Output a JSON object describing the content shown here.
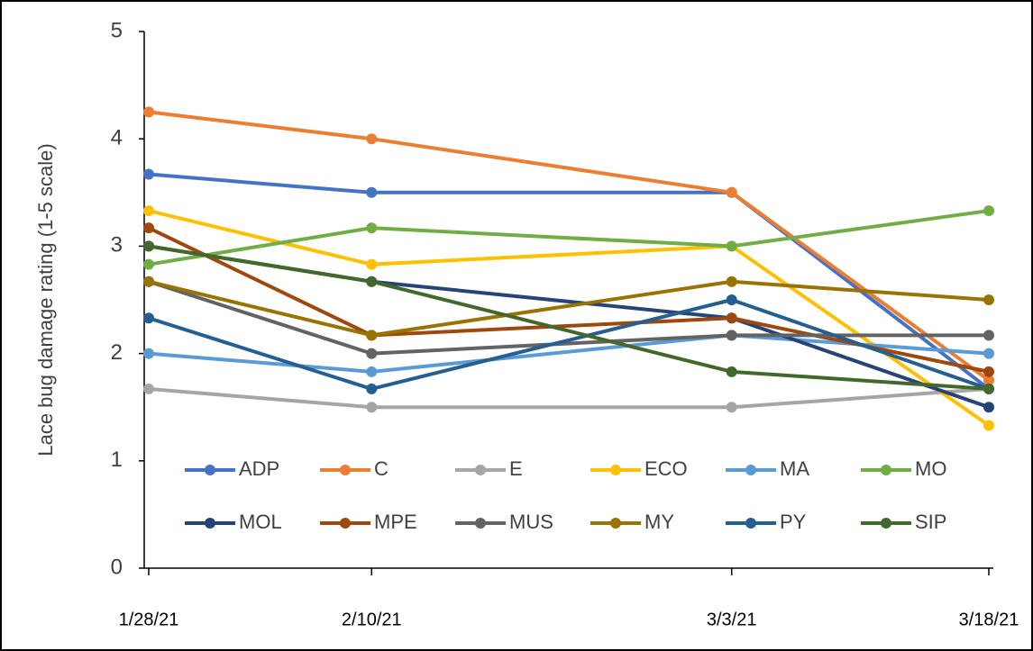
{
  "chart_data": {
    "type": "line",
    "y_label": "Lace bug damage rating (1-5 scale)",
    "x": [
      "1/28/21",
      "2/10/21",
      "3/3/21",
      "3/18/21"
    ],
    "xticks": [
      "1/28/21",
      "2/10/21",
      "3/3/21",
      "3/18/21"
    ],
    "ylim": [
      0,
      5
    ],
    "yticks": [
      0,
      1,
      2,
      3,
      4,
      5
    ],
    "series": [
      {
        "name": "ADP",
        "color": "#4472c4",
        "values": [
          3.67,
          3.5,
          3.5,
          1.67
        ]
      },
      {
        "name": "C",
        "color": "#ed7d31",
        "values": [
          4.25,
          4.0,
          3.5,
          1.75
        ]
      },
      {
        "name": "E",
        "color": "#a5a5a5",
        "values": [
          1.67,
          1.5,
          1.5,
          1.67
        ]
      },
      {
        "name": "ECO",
        "color": "#ffc000",
        "values": [
          3.33,
          2.83,
          3.0,
          1.33
        ]
      },
      {
        "name": "MA",
        "color": "#5b9bd5",
        "values": [
          2.0,
          1.83,
          2.17,
          2.0
        ]
      },
      {
        "name": "MO",
        "color": "#70ad47",
        "values": [
          2.83,
          3.17,
          3.0,
          3.33
        ]
      },
      {
        "name": "MOL",
        "color": "#264478",
        "values": [
          3.0,
          2.67,
          2.33,
          1.5
        ]
      },
      {
        "name": "MPE",
        "color": "#9e480e",
        "values": [
          3.17,
          2.17,
          2.33,
          1.83
        ]
      },
      {
        "name": "MUS",
        "color": "#636363",
        "values": [
          2.67,
          2.0,
          2.17,
          2.17
        ]
      },
      {
        "name": "MY",
        "color": "#997300",
        "values": [
          2.67,
          2.17,
          2.67,
          2.5
        ]
      },
      {
        "name": "PY",
        "color": "#255e91",
        "values": [
          2.33,
          1.67,
          2.5,
          1.67
        ]
      },
      {
        "name": "SIP",
        "color": "#43682b",
        "values": [
          3.0,
          2.67,
          1.83,
          1.67
        ]
      }
    ]
  }
}
